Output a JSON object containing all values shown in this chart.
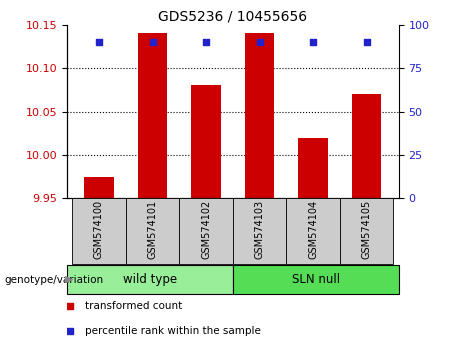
{
  "title": "GDS5236 / 10455656",
  "samples": [
    "GSM574100",
    "GSM574101",
    "GSM574102",
    "GSM574103",
    "GSM574104",
    "GSM574105"
  ],
  "red_values": [
    9.975,
    10.14,
    10.08,
    10.14,
    10.02,
    10.07
  ],
  "blue_values": [
    90,
    90,
    90,
    90,
    90,
    90
  ],
  "ylim_left": [
    9.95,
    10.15
  ],
  "ylim_right": [
    0,
    100
  ],
  "yticks_left": [
    9.95,
    10.0,
    10.05,
    10.1,
    10.15
  ],
  "yticks_right": [
    0,
    25,
    50,
    75,
    100
  ],
  "baseline": 9.95,
  "bar_color": "#cc0000",
  "dot_color": "#2222cc",
  "background_label": "#cccccc",
  "background_wt": "#99ee99",
  "background_sln": "#55dd55",
  "wild_type_label": "wild type",
  "sln_label": "SLN null",
  "genotype_label": "genotype/variation",
  "legend_red": "transformed count",
  "legend_blue": "percentile rank within the sample",
  "left_axis_color": "#cc0000",
  "right_axis_color": "#2222cc",
  "bar_width": 0.55,
  "grid_yticks": [
    10.0,
    10.05,
    10.1
  ]
}
